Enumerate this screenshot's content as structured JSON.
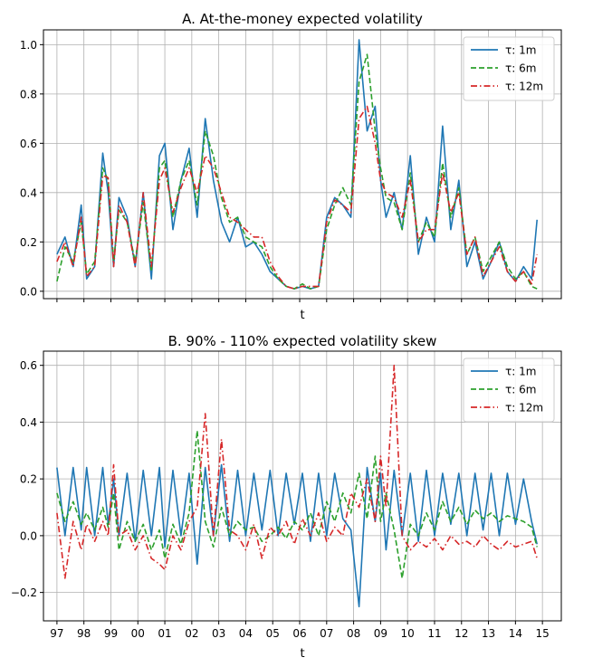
{
  "chart_data": [
    {
      "type": "line",
      "title": "A. At-the-money expected volatility",
      "xlabel": "t",
      "ylabel": "",
      "xlim": [
        96.5,
        115.7
      ],
      "ylim": [
        -0.03,
        1.06
      ],
      "grid": true,
      "legend_position": "top-right",
      "yticks": [
        0.0,
        0.2,
        0.4,
        0.6,
        0.8,
        1.0
      ],
      "ytick_labels": [
        "0.0",
        "0.2",
        "0.4",
        "0.6",
        "0.8",
        "1.0"
      ],
      "xticks": [
        97,
        98,
        99,
        100,
        101,
        102,
        103,
        104,
        105,
        106,
        107,
        108,
        109,
        110,
        111,
        112,
        113,
        114,
        115
      ],
      "show_xtick_labels": false,
      "series": [
        {
          "name": "τ: 1m",
          "color": "#1f77b4",
          "style": "solid",
          "x": [
            97.0,
            97.3,
            97.6,
            97.9,
            98.1,
            98.4,
            98.7,
            98.9,
            99.1,
            99.3,
            99.6,
            99.9,
            100.2,
            100.5,
            100.8,
            101.0,
            101.3,
            101.6,
            101.9,
            102.2,
            102.5,
            102.8,
            103.1,
            103.4,
            103.7,
            104.0,
            104.3,
            104.6,
            104.9,
            105.2,
            105.5,
            105.8,
            106.1,
            106.4,
            106.7,
            107.0,
            107.3,
            107.6,
            107.9,
            108.2,
            108.5,
            108.8,
            109.0,
            109.2,
            109.5,
            109.8,
            110.1,
            110.4,
            110.7,
            111.0,
            111.3,
            111.6,
            111.9,
            112.2,
            112.5,
            112.8,
            113.1,
            113.4,
            113.7,
            114.0,
            114.3,
            114.6,
            114.8
          ],
          "y": [
            0.15,
            0.22,
            0.1,
            0.35,
            0.05,
            0.1,
            0.56,
            0.4,
            0.1,
            0.38,
            0.3,
            0.1,
            0.4,
            0.05,
            0.55,
            0.6,
            0.25,
            0.45,
            0.58,
            0.3,
            0.7,
            0.45,
            0.28,
            0.2,
            0.3,
            0.18,
            0.2,
            0.15,
            0.08,
            0.05,
            0.02,
            0.01,
            0.02,
            0.01,
            0.02,
            0.3,
            0.38,
            0.35,
            0.3,
            1.02,
            0.65,
            0.75,
            0.45,
            0.3,
            0.4,
            0.25,
            0.55,
            0.15,
            0.3,
            0.2,
            0.67,
            0.25,
            0.45,
            0.1,
            0.2,
            0.05,
            0.12,
            0.2,
            0.08,
            0.04,
            0.1,
            0.05,
            0.29
          ]
        },
        {
          "name": "τ: 6m",
          "color": "#2ca02c",
          "style": "dashed",
          "x": [
            97.0,
            97.3,
            97.6,
            97.9,
            98.1,
            98.4,
            98.7,
            98.9,
            99.1,
            99.3,
            99.6,
            99.9,
            100.2,
            100.5,
            100.8,
            101.0,
            101.3,
            101.6,
            101.9,
            102.2,
            102.5,
            102.8,
            103.1,
            103.4,
            103.7,
            104.0,
            104.3,
            104.6,
            104.9,
            105.2,
            105.5,
            105.8,
            106.1,
            106.4,
            106.7,
            107.0,
            107.3,
            107.6,
            107.9,
            108.2,
            108.5,
            108.8,
            109.0,
            109.2,
            109.5,
            109.8,
            110.1,
            110.4,
            110.7,
            111.0,
            111.3,
            111.6,
            111.9,
            112.2,
            112.5,
            112.8,
            113.1,
            113.4,
            113.7,
            114.0,
            114.3,
            114.6,
            114.8
          ],
          "y": [
            0.04,
            0.18,
            0.12,
            0.28,
            0.07,
            0.12,
            0.5,
            0.45,
            0.12,
            0.33,
            0.28,
            0.12,
            0.36,
            0.08,
            0.5,
            0.53,
            0.3,
            0.45,
            0.53,
            0.35,
            0.65,
            0.55,
            0.38,
            0.28,
            0.3,
            0.22,
            0.2,
            0.18,
            0.1,
            0.05,
            0.02,
            0.01,
            0.03,
            0.01,
            0.02,
            0.25,
            0.35,
            0.42,
            0.35,
            0.85,
            0.96,
            0.65,
            0.5,
            0.38,
            0.36,
            0.25,
            0.48,
            0.2,
            0.28,
            0.22,
            0.52,
            0.3,
            0.42,
            0.15,
            0.22,
            0.08,
            0.14,
            0.2,
            0.1,
            0.05,
            0.08,
            0.02,
            0.01
          ]
        },
        {
          "name": "τ: 12m",
          "color": "#d62728",
          "style": "dashdot",
          "x": [
            97.0,
            97.3,
            97.6,
            97.9,
            98.1,
            98.4,
            98.7,
            98.9,
            99.1,
            99.3,
            99.6,
            99.9,
            100.2,
            100.5,
            100.8,
            101.0,
            101.3,
            101.6,
            101.9,
            102.2,
            102.5,
            102.8,
            103.1,
            103.4,
            103.7,
            104.0,
            104.3,
            104.6,
            104.9,
            105.2,
            105.5,
            105.8,
            106.1,
            106.4,
            106.7,
            107.0,
            107.3,
            107.6,
            107.9,
            108.2,
            108.5,
            108.8,
            109.0,
            109.2,
            109.5,
            109.8,
            110.1,
            110.4,
            110.7,
            111.0,
            111.3,
            111.6,
            111.9,
            112.2,
            112.5,
            112.8,
            113.1,
            113.4,
            113.7,
            114.0,
            114.3,
            114.6,
            114.8
          ],
          "y": [
            0.12,
            0.2,
            0.1,
            0.3,
            0.06,
            0.1,
            0.47,
            0.46,
            0.1,
            0.35,
            0.28,
            0.1,
            0.4,
            0.1,
            0.45,
            0.5,
            0.32,
            0.42,
            0.5,
            0.4,
            0.55,
            0.5,
            0.4,
            0.3,
            0.28,
            0.25,
            0.22,
            0.22,
            0.12,
            0.06,
            0.02,
            0.01,
            0.02,
            0.02,
            0.02,
            0.28,
            0.37,
            0.35,
            0.32,
            0.7,
            0.75,
            0.6,
            0.45,
            0.4,
            0.38,
            0.3,
            0.45,
            0.2,
            0.25,
            0.25,
            0.48,
            0.32,
            0.4,
            0.15,
            0.22,
            0.06,
            0.12,
            0.18,
            0.08,
            0.04,
            0.08,
            0.03,
            0.15
          ]
        }
      ]
    },
    {
      "type": "line",
      "title": "B. 90% - 110% expected volatility skew",
      "xlabel": "t",
      "ylabel": "",
      "xlim": [
        96.5,
        115.7
      ],
      "ylim": [
        -0.3,
        0.65
      ],
      "grid": true,
      "legend_position": "top-right",
      "yticks": [
        -0.2,
        0.0,
        0.2,
        0.4,
        0.6
      ],
      "ytick_labels": [
        "−0.2",
        "0.0",
        "0.2",
        "0.4",
        "0.6"
      ],
      "xticks": [
        97,
        98,
        99,
        100,
        101,
        102,
        103,
        104,
        105,
        106,
        107,
        108,
        109,
        110,
        111,
        112,
        113,
        114,
        115
      ],
      "xtick_labels": [
        "97",
        "98",
        "99",
        "00",
        "01",
        "02",
        "03",
        "04",
        "05",
        "06",
        "07",
        "08",
        "09",
        "10",
        "11",
        "12",
        "13",
        "14",
        "15"
      ],
      "series": [
        {
          "name": "τ: 1m",
          "color": "#1f77b4",
          "style": "solid",
          "x": [
            97.0,
            97.3,
            97.6,
            97.9,
            98.1,
            98.4,
            98.7,
            98.9,
            99.1,
            99.3,
            99.6,
            99.9,
            100.2,
            100.5,
            100.8,
            101.0,
            101.3,
            101.6,
            101.9,
            102.2,
            102.5,
            102.8,
            103.1,
            103.4,
            103.7,
            104.0,
            104.3,
            104.6,
            104.9,
            105.2,
            105.5,
            105.8,
            106.1,
            106.4,
            106.7,
            107.0,
            107.3,
            107.6,
            107.9,
            108.2,
            108.5,
            108.8,
            109.0,
            109.2,
            109.5,
            109.8,
            110.1,
            110.4,
            110.7,
            111.0,
            111.3,
            111.6,
            111.9,
            112.2,
            112.5,
            112.8,
            113.1,
            113.4,
            113.7,
            114.0,
            114.3,
            114.6,
            114.8
          ],
          "y": [
            0.24,
            0.0,
            0.24,
            0.02,
            0.24,
            0.0,
            0.24,
            0.04,
            0.2,
            0.0,
            0.22,
            -0.02,
            0.23,
            0.0,
            0.24,
            -0.04,
            0.23,
            0.0,
            0.22,
            -0.1,
            0.24,
            0.0,
            0.25,
            -0.02,
            0.23,
            0.0,
            0.22,
            0.02,
            0.23,
            0.0,
            0.22,
            0.04,
            0.22,
            -0.02,
            0.22,
            0.0,
            0.22,
            0.06,
            0.02,
            -0.25,
            0.24,
            0.05,
            0.22,
            -0.05,
            0.23,
            0.0,
            0.22,
            -0.02,
            0.23,
            0.0,
            0.22,
            0.04,
            0.22,
            0.0,
            0.22,
            0.02,
            0.22,
            0.0,
            0.22,
            0.04,
            0.2,
            0.05,
            -0.03
          ]
        },
        {
          "name": "τ: 6m",
          "color": "#2ca02c",
          "style": "dashed",
          "x": [
            97.0,
            97.3,
            97.6,
            97.9,
            98.1,
            98.4,
            98.7,
            98.9,
            99.1,
            99.3,
            99.6,
            99.9,
            100.2,
            100.5,
            100.8,
            101.0,
            101.3,
            101.6,
            101.9,
            102.2,
            102.5,
            102.8,
            103.1,
            103.4,
            103.7,
            104.0,
            104.3,
            104.6,
            104.9,
            105.2,
            105.5,
            105.8,
            106.1,
            106.4,
            106.7,
            107.0,
            107.3,
            107.6,
            107.9,
            108.2,
            108.5,
            108.8,
            109.0,
            109.2,
            109.5,
            109.8,
            110.1,
            110.4,
            110.7,
            111.0,
            111.3,
            111.6,
            111.9,
            112.2,
            112.5,
            112.8,
            113.1,
            113.4,
            113.7,
            114.0,
            114.3,
            114.6,
            114.8
          ],
          "y": [
            0.15,
            0.05,
            0.12,
            0.04,
            0.08,
            0.02,
            0.1,
            0.03,
            0.15,
            -0.05,
            0.05,
            -0.02,
            0.04,
            -0.05,
            0.02,
            -0.08,
            0.04,
            -0.03,
            0.08,
            0.37,
            0.05,
            -0.04,
            0.1,
            0.0,
            0.05,
            0.02,
            0.03,
            -0.02,
            0.0,
            0.03,
            -0.01,
            0.05,
            0.02,
            0.08,
            0.0,
            0.12,
            0.05,
            0.15,
            0.08,
            0.22,
            0.06,
            0.28,
            0.05,
            0.15,
            0.02,
            -0.15,
            0.04,
            0.0,
            0.08,
            0.02,
            0.12,
            0.05,
            0.1,
            0.04,
            0.09,
            0.06,
            0.08,
            0.05,
            0.07,
            0.06,
            0.05,
            0.03,
            -0.04
          ]
        },
        {
          "name": "τ: 12m",
          "color": "#d62728",
          "style": "dashdot",
          "x": [
            97.0,
            97.3,
            97.6,
            97.9,
            98.1,
            98.4,
            98.7,
            98.9,
            99.1,
            99.3,
            99.6,
            99.9,
            100.2,
            100.5,
            100.8,
            101.0,
            101.3,
            101.6,
            101.9,
            102.2,
            102.5,
            102.8,
            103.1,
            103.4,
            103.7,
            104.0,
            104.3,
            104.6,
            104.9,
            105.2,
            105.5,
            105.8,
            106.1,
            106.4,
            106.7,
            107.0,
            107.3,
            107.6,
            107.9,
            108.2,
            108.5,
            108.8,
            109.0,
            109.2,
            109.5,
            109.8,
            110.1,
            110.4,
            110.7,
            111.0,
            111.3,
            111.6,
            111.9,
            112.2,
            112.5,
            112.8,
            113.1,
            113.4,
            113.7,
            114.0,
            114.3,
            114.6,
            114.8
          ],
          "y": [
            0.08,
            -0.15,
            0.05,
            -0.05,
            0.04,
            -0.02,
            0.05,
            0.0,
            0.25,
            0.0,
            0.02,
            -0.05,
            0.0,
            -0.08,
            -0.1,
            -0.12,
            0.0,
            -0.05,
            0.05,
            0.1,
            0.43,
            0.0,
            0.34,
            0.02,
            0.0,
            -0.05,
            0.04,
            -0.08,
            0.03,
            0.0,
            0.05,
            -0.03,
            0.06,
            0.0,
            0.08,
            -0.02,
            0.03,
            0.0,
            0.15,
            0.1,
            0.2,
            0.05,
            0.28,
            0.1,
            0.6,
            0.0,
            -0.05,
            -0.02,
            -0.04,
            -0.01,
            -0.05,
            0.0,
            -0.03,
            -0.02,
            -0.04,
            0.0,
            -0.03,
            -0.05,
            -0.02,
            -0.04,
            -0.03,
            -0.02,
            -0.08
          ]
        }
      ]
    }
  ]
}
